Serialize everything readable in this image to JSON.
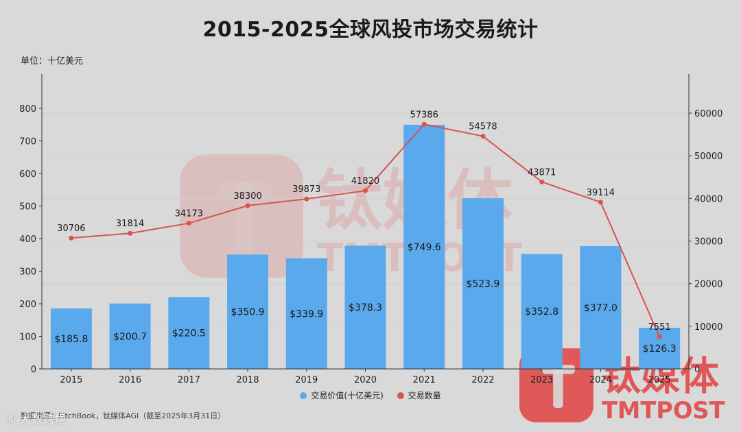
{
  "title": "2015-2025全球风投市场交易统计",
  "unit_label": "单位：十亿美元",
  "source_text": "数据来源：PitchBook，钛媒体AGI（截至2025年3月31日）",
  "corner_text": "⑥ 大数跨境",
  "watermark": {
    "name": "钛媒体",
    "sub": "TMTPOST",
    "color": "#e04a4a"
  },
  "colors": {
    "bar": "#5aa9ec",
    "line": "#d9534f",
    "axis": "#333333",
    "grid": "#cfcfcf"
  },
  "legend": {
    "bar_label": "交易价值(十亿美元)",
    "line_label": "交易数量"
  },
  "chart_data": {
    "type": "bar",
    "categories": [
      "2015",
      "2016",
      "2017",
      "2018",
      "2019",
      "2020",
      "2021",
      "2022",
      "2023",
      "2024",
      "2025"
    ],
    "series": [
      {
        "name": "交易价值(十亿美元)",
        "type": "bar",
        "axis": "left",
        "values": [
          185.8,
          200.7,
          220.5,
          350.9,
          339.9,
          378.3,
          749.6,
          523.9,
          352.8,
          377.0,
          126.3
        ],
        "labels": [
          "$185.8",
          "$200.7",
          "$220.5",
          "$350.9",
          "$339.9",
          "$378.3",
          "$749.6",
          "$523.9",
          "$352.8",
          "$377.0",
          "$126.3"
        ]
      },
      {
        "name": "交易数量",
        "type": "line",
        "axis": "right",
        "values": [
          30706,
          31814,
          34173,
          38300,
          39873,
          41820,
          57386,
          54578,
          43871,
          39114,
          7551
        ]
      }
    ],
    "y_left": {
      "min": 0,
      "max": 800,
      "ticks": [
        0,
        100,
        200,
        300,
        400,
        500,
        600,
        700,
        800
      ]
    },
    "y_right": {
      "min": 0,
      "max": 60000,
      "ticks": [
        0,
        10000,
        20000,
        30000,
        40000,
        50000,
        60000
      ]
    },
    "grid": true,
    "legend_position": "bottom"
  }
}
